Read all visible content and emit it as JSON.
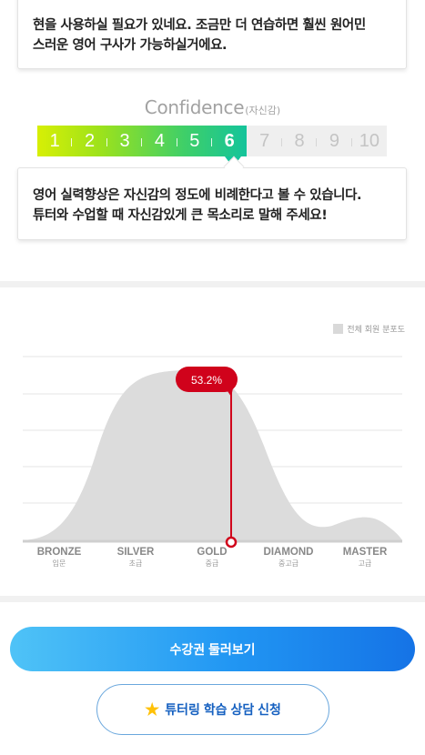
{
  "top_feedback": {
    "line1": "현을 사용하실 필요가 있네요. 조금만 더 연습하면 훨씬 원어민",
    "line2": "스러운 영어 구사가 가능하실거에요."
  },
  "confidence": {
    "title": "Confidence",
    "subtitle": "(자신감)",
    "levels": [
      "1",
      "2",
      "3",
      "4",
      "5",
      "6",
      "7",
      "8",
      "9",
      "10"
    ],
    "selected": 6,
    "colors": {
      "start": "#d7ef05",
      "end": "#14c49b",
      "inactive": "#efefef"
    }
  },
  "confidence_feedback": {
    "line1": "영어 실력향상은 자신감의 정도에 비례한다고 볼 수 있습니다.",
    "line2": "튜터와 수업할 때 자신감있게 큰 목소리로 말해 주세요!"
  },
  "distribution": {
    "legend": "전체 회원 분포도",
    "marker_value": "53.2%",
    "marker_color": "#d0021b",
    "levels": [
      {
        "en": "BRONZE",
        "ko": "입문"
      },
      {
        "en": "SILVER",
        "ko": "초급"
      },
      {
        "en": "GOLD",
        "ko": "중급"
      },
      {
        "en": "DIAMOND",
        "ko": "중고급"
      },
      {
        "en": "MASTER",
        "ko": "고급"
      }
    ]
  },
  "buttons": {
    "primary": "수강권 둘러보기",
    "secondary": "튜터링 학습 상담 신청",
    "secondary_icon": "star-icon"
  }
}
